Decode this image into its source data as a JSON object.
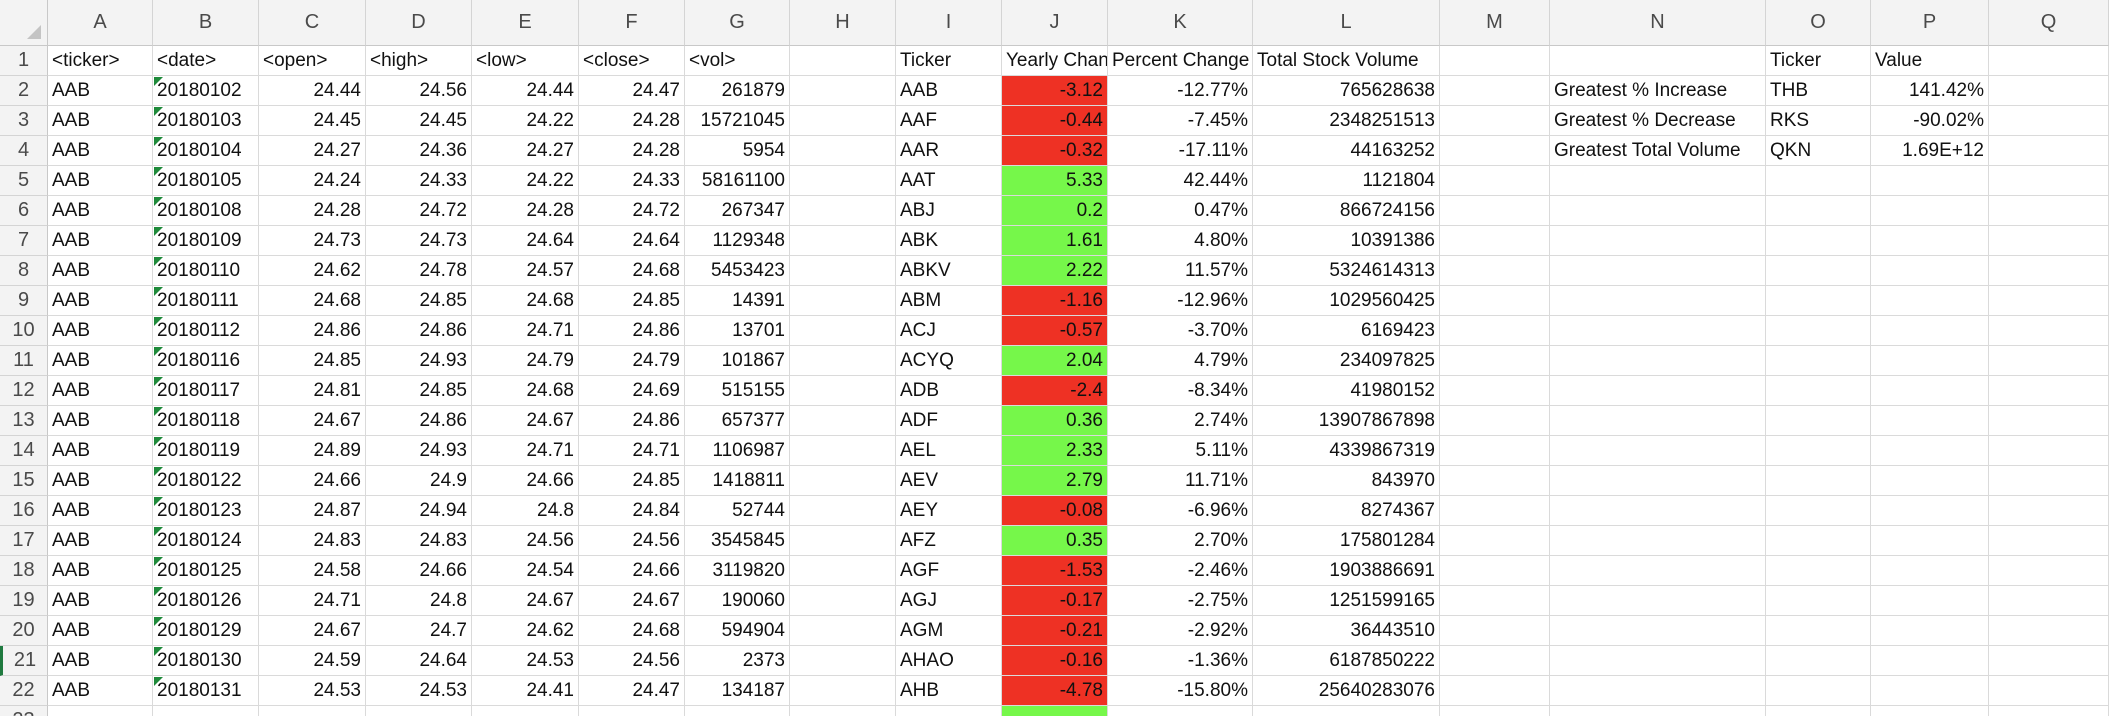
{
  "columns": [
    "A",
    "B",
    "C",
    "D",
    "E",
    "F",
    "G",
    "H",
    "I",
    "J",
    "K",
    "L",
    "M",
    "N",
    "O",
    "P",
    "Q"
  ],
  "colors": {
    "negative": "#ee3124",
    "positive": "#76f74a",
    "error_indicator": "#1e8a3a"
  },
  "raw_headers": [
    "<ticker>",
    "<date>",
    "<open>",
    "<high>",
    "<low>",
    "<close>",
    "<vol>"
  ],
  "raw_rows": [
    [
      "AAB",
      "20180102",
      "24.44",
      "24.56",
      "24.44",
      "24.47",
      "261879"
    ],
    [
      "AAB",
      "20180103",
      "24.45",
      "24.45",
      "24.22",
      "24.28",
      "15721045"
    ],
    [
      "AAB",
      "20180104",
      "24.27",
      "24.36",
      "24.27",
      "24.28",
      "5954"
    ],
    [
      "AAB",
      "20180105",
      "24.24",
      "24.33",
      "24.22",
      "24.33",
      "58161100"
    ],
    [
      "AAB",
      "20180108",
      "24.28",
      "24.72",
      "24.28",
      "24.72",
      "267347"
    ],
    [
      "AAB",
      "20180109",
      "24.73",
      "24.73",
      "24.64",
      "24.64",
      "1129348"
    ],
    [
      "AAB",
      "20180110",
      "24.62",
      "24.78",
      "24.57",
      "24.68",
      "5453423"
    ],
    [
      "AAB",
      "20180111",
      "24.68",
      "24.85",
      "24.68",
      "24.85",
      "14391"
    ],
    [
      "AAB",
      "20180112",
      "24.86",
      "24.86",
      "24.71",
      "24.86",
      "13701"
    ],
    [
      "AAB",
      "20180116",
      "24.85",
      "24.93",
      "24.79",
      "24.79",
      "101867"
    ],
    [
      "AAB",
      "20180117",
      "24.81",
      "24.85",
      "24.68",
      "24.69",
      "515155"
    ],
    [
      "AAB",
      "20180118",
      "24.67",
      "24.86",
      "24.67",
      "24.86",
      "657377"
    ],
    [
      "AAB",
      "20180119",
      "24.89",
      "24.93",
      "24.71",
      "24.71",
      "1106987"
    ],
    [
      "AAB",
      "20180122",
      "24.66",
      "24.9",
      "24.66",
      "24.85",
      "1418811"
    ],
    [
      "AAB",
      "20180123",
      "24.87",
      "24.94",
      "24.8",
      "24.84",
      "52744"
    ],
    [
      "AAB",
      "20180124",
      "24.83",
      "24.83",
      "24.56",
      "24.56",
      "3545845"
    ],
    [
      "AAB",
      "20180125",
      "24.58",
      "24.66",
      "24.54",
      "24.66",
      "3119820"
    ],
    [
      "AAB",
      "20180126",
      "24.71",
      "24.8",
      "24.67",
      "24.67",
      "190060"
    ],
    [
      "AAB",
      "20180129",
      "24.67",
      "24.7",
      "24.62",
      "24.68",
      "594904"
    ],
    [
      "AAB",
      "20180130",
      "24.59",
      "24.64",
      "24.53",
      "24.56",
      "2373"
    ],
    [
      "AAB",
      "20180131",
      "24.53",
      "24.53",
      "24.41",
      "24.47",
      "134187"
    ]
  ],
  "summary_headers": [
    "Ticker",
    "Yearly Change",
    "Percent Change",
    "Total Stock Volume"
  ],
  "summary_rows": [
    [
      "AAB",
      "-3.12",
      "-12.77%",
      "765628638"
    ],
    [
      "AAF",
      "-0.44",
      "-7.45%",
      "2348251513"
    ],
    [
      "AAR",
      "-0.32",
      "-17.11%",
      "44163252"
    ],
    [
      "AAT",
      "5.33",
      "42.44%",
      "1121804"
    ],
    [
      "ABJ",
      "0.2",
      "0.47%",
      "866724156"
    ],
    [
      "ABK",
      "1.61",
      "4.80%",
      "10391386"
    ],
    [
      "ABKV",
      "2.22",
      "11.57%",
      "5324614313"
    ],
    [
      "ABM",
      "-1.16",
      "-12.96%",
      "1029560425"
    ],
    [
      "ACJ",
      "-0.57",
      "-3.70%",
      "6169423"
    ],
    [
      "ACYQ",
      "2.04",
      "4.79%",
      "234097825"
    ],
    [
      "ADB",
      "-2.4",
      "-8.34%",
      "41980152"
    ],
    [
      "ADF",
      "0.36",
      "2.74%",
      "13907867898"
    ],
    [
      "AEL",
      "2.33",
      "5.11%",
      "4339867319"
    ],
    [
      "AEV",
      "2.79",
      "11.71%",
      "843970"
    ],
    [
      "AEY",
      "-0.08",
      "-6.96%",
      "8274367"
    ],
    [
      "AFZ",
      "0.35",
      "2.70%",
      "175801284"
    ],
    [
      "AGF",
      "-1.53",
      "-2.46%",
      "1903886691"
    ],
    [
      "AGJ",
      "-0.17",
      "-2.75%",
      "1251599165"
    ],
    [
      "AGM",
      "-0.21",
      "-2.92%",
      "36443510"
    ],
    [
      "AHAO",
      "-0.16",
      "-1.36%",
      "6187850222"
    ],
    [
      "AHB",
      "-4.78",
      "-15.80%",
      "25640283076"
    ]
  ],
  "greatest_headers": [
    "Ticker",
    "Value"
  ],
  "greatest_rows": [
    [
      "Greatest % Increase",
      "THB",
      "141.42%"
    ],
    [
      "Greatest % Decrease",
      "RKS",
      "-90.02%"
    ],
    [
      "Greatest Total Volume",
      "QKN",
      "1.69E+12"
    ]
  ]
}
